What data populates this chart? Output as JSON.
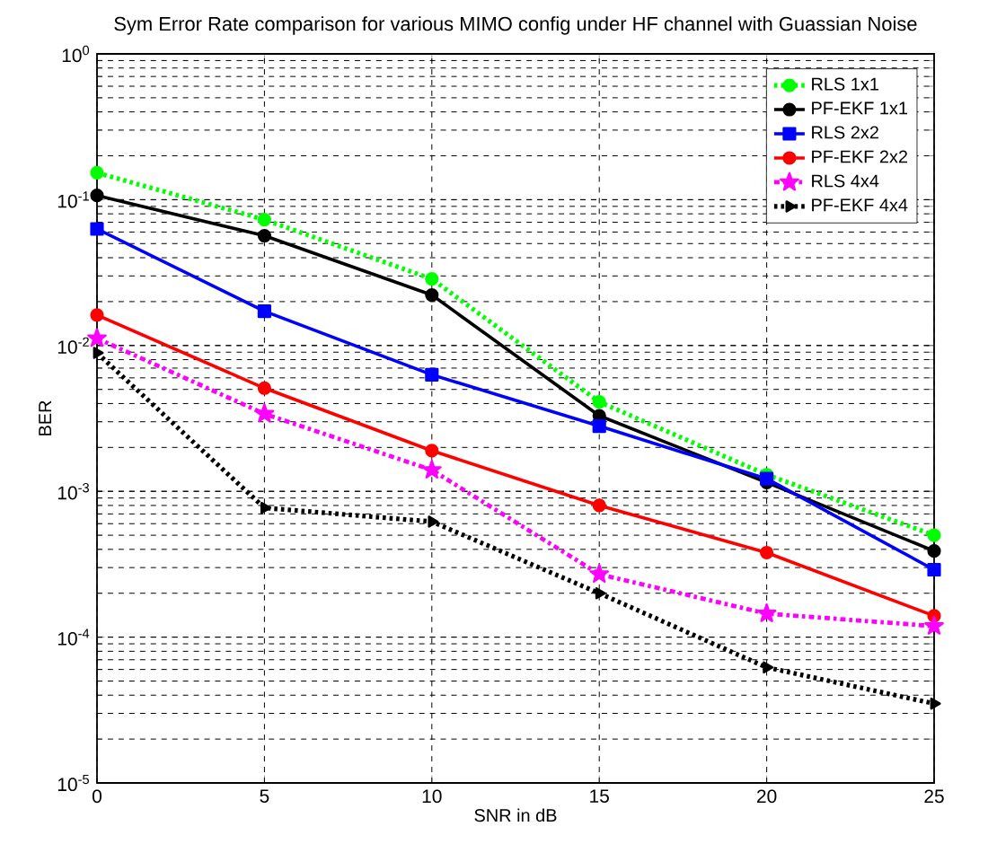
{
  "chart_data": {
    "type": "line",
    "title": "Sym  Error Rate comparison for various MIMO config under HF channel with Guassian Noise",
    "xlabel": "SNR in dB",
    "ylabel": "BER",
    "log": "y",
    "grid": true,
    "legend": "top right",
    "x": [
      0,
      5,
      10,
      15,
      20,
      25
    ],
    "xlim": [
      0,
      25
    ],
    "xticks": [
      0,
      5,
      10,
      15,
      20,
      25
    ],
    "ylim": [
      1e-05,
      1
    ],
    "yticks": [
      {
        "value": 1e-05,
        "label": "10$^{-5}$"
      },
      {
        "value": 0.0001,
        "label": "10$^{-4}$"
      },
      {
        "value": 0.001,
        "label": "10$^{-3}$"
      },
      {
        "value": 0.01,
        "label": "10$^{-2}$"
      },
      {
        "value": 0.1,
        "label": "10$^{-1}$"
      },
      {
        "value": 1,
        "label": "10$^{0}$"
      }
    ],
    "series": [
      {
        "name": "RLS 1x1",
        "color": "#00ff00",
        "marker": "circle",
        "line_style": "dotted",
        "values": [
          0.153,
          0.073,
          0.0286,
          0.0041,
          0.0013,
          0.0005
        ]
      },
      {
        "name": "PF-EKF 1x1",
        "color": "#000000",
        "marker": "circle",
        "line_style": "solid",
        "values": [
          0.107,
          0.0566,
          0.0222,
          0.0033,
          0.00115,
          0.00039
        ]
      },
      {
        "name": "RLS 2x2",
        "color": "#0000ff",
        "marker": "square",
        "line_style": "solid",
        "values": [
          0.063,
          0.0172,
          0.0063,
          0.0028,
          0.00122,
          0.00029
        ]
      },
      {
        "name": "PF-EKF 2x2",
        "color": "#ff0000",
        "marker": "circle",
        "line_style": "solid",
        "values": [
          0.0162,
          0.0051,
          0.0019,
          0.0008,
          0.00038,
          0.00014
        ]
      },
      {
        "name": "RLS 4x4",
        "color": "#ff00ff",
        "marker": "star",
        "line_style": "dashdot",
        "values": [
          0.0112,
          0.0034,
          0.0014,
          0.00027,
          0.000145,
          0.000119
        ]
      },
      {
        "name": "PF-EKF 4x4",
        "color": "#000000",
        "marker": "triangle",
        "line_style": "dotted",
        "values": [
          0.0089,
          0.00077,
          0.00062,
          0.0002,
          6.2e-05,
          3.5e-05
        ]
      }
    ]
  }
}
